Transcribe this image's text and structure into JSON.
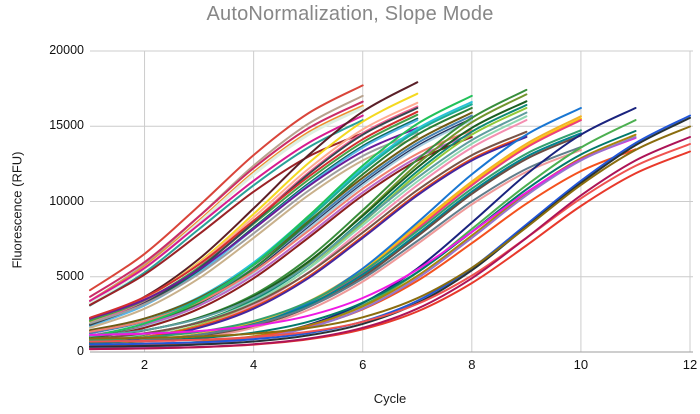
{
  "chart": {
    "background": "#ffffff",
    "title_color": "#878787",
    "gridline_color": "#cccccc",
    "baseline_color": "#9e9e9e"
  },
  "chart_data": {
    "type": "line",
    "title": "AutoNormalization, Slope Mode",
    "xlabel": "Cycle",
    "ylabel": "Fluorescence (RFU)",
    "xlim": [
      1,
      12
    ],
    "ylim": [
      0,
      20000
    ],
    "x_ticks": [
      2,
      4,
      6,
      8,
      10,
      12
    ],
    "y_ticks": [
      0,
      5000,
      10000,
      15000,
      20000
    ],
    "grid": true,
    "legend": false,
    "note": "qPCR-style amplification curves, no legend; every series starts at cycle 1; x values are integer cycles 1..N (N = array length); curves end in clusters at cycles 6-12",
    "series": [
      {
        "color": "#d9453a",
        "y": [
          4103,
          6516,
          9718,
          13084,
          15855,
          17714
        ]
      },
      {
        "color": "#b8a28e",
        "y": [
          3403,
          5816,
          9018,
          12384,
          15155,
          17014
        ]
      },
      {
        "color": "#cb2b66",
        "y": [
          3668,
          5966,
          9016,
          12221,
          14860,
          16631
        ]
      },
      {
        "color": "#ef8e2e",
        "y": [
          3398,
          5696,
          8746,
          11951,
          14590,
          16361
        ]
      },
      {
        "color": "#ddf0e2",
        "width": 3,
        "y": [
          3248,
          5546,
          8596,
          11801,
          14440,
          16211
        ]
      },
      {
        "color": "#d81b8f",
        "y": [
          3393,
          5576,
          8474,
          11376,
          13883,
          15708
        ]
      },
      {
        "color": "#2aa198",
        "y": [
          3093,
          5276,
          8174,
          11076,
          13583,
          15408
        ]
      },
      {
        "color": "#9b2226",
        "y": [
          3126,
          5148,
          7832,
          10653,
          12975,
          14534
        ]
      },
      {
        "color": "#5a1f27",
        "y": [
          2068,
          3658,
          6186,
          9541,
          13066,
          15969,
          17917
        ]
      },
      {
        "color": "#f4d920",
        "y": [
          2036,
          3553,
          5966,
          9168,
          12534,
          15305,
          17164
        ]
      },
      {
        "color": "#ffab91",
        "y": [
          2153,
          3598,
          5896,
          8946,
          12151,
          14790,
          16561
        ]
      },
      {
        "color": "#f06292",
        "y": [
          1903,
          3348,
          5646,
          8696,
          11901,
          14540,
          16311
        ]
      },
      {
        "color": "#43a047",
        "y": [
          2070,
          3443,
          5626,
          8524,
          11426,
          13933,
          15758
        ]
      },
      {
        "color": "#0b6a5d",
        "y": [
          1820,
          3193,
          5376,
          8274,
          11176,
          13683,
          15508
        ]
      },
      {
        "color": "#58b6e8",
        "y": [
          1720,
          3093,
          5276,
          8174,
          11076,
          13583,
          15408
        ]
      },
      {
        "color": "#37474f",
        "y": [
          1803,
          3248,
          5546,
          8596,
          11801,
          14440,
          16211
        ]
      },
      {
        "color": "#6a1b9a",
        "y": [
          2205,
          3476,
          5498,
          8182,
          11003,
          13325,
          14884
        ]
      },
      {
        "color": "#9e9e9e",
        "y": [
          1905,
          3176,
          5198,
          7882,
          10703,
          13025,
          14584
        ]
      },
      {
        "color": "#d32f2f",
        "y": [
          2270,
          3643,
          5826,
          8724,
          11626,
          14133,
          15958
        ]
      },
      {
        "color": "#c9b18c",
        "y": [
          1605,
          2876,
          4898,
          7582,
          10403,
          12725,
          14284
        ]
      },
      {
        "color": "#29c2d6",
        "y": [
          1393,
          2203,
          3648,
          5946,
          8996,
          12201,
          14840,
          16611
        ]
      },
      {
        "color": "#6e5a14",
        "y": [
          1451,
          2220,
          3593,
          5776,
          8674,
          11576,
          14083,
          15908
        ]
      },
      {
        "color": "#19ad93",
        "y": [
          1243,
          2053,
          3498,
          5796,
          8846,
          12051,
          14690,
          16461
        ]
      },
      {
        "color": "#4682b4",
        "y": [
          1251,
          2020,
          3393,
          5576,
          8474,
          11376,
          13883,
          15708
        ]
      },
      {
        "color": "#23345e",
        "y": [
          1051,
          1820,
          3193,
          5376,
          8274,
          11176,
          13683,
          15508
        ]
      },
      {
        "color": "#a9cfe0",
        "y": [
          951,
          1720,
          3093,
          5276,
          8174,
          11076,
          13583,
          15408
        ]
      },
      {
        "color": "#2e7d32",
        "y": [
          993,
          1803,
          3248,
          5546,
          8596,
          11801,
          14440,
          16211
        ]
      },
      {
        "color": "#f08070",
        "y": [
          1342,
          2055,
          3326,
          5348,
          8032,
          10853,
          13175,
          14734
        ]
      },
      {
        "color": "#ba68c8",
        "y": [
          1092,
          1805,
          3076,
          5098,
          7782,
          10603,
          12925,
          14484
        ]
      },
      {
        "color": "#8d1d1d",
        "y": [
          892,
          1605,
          2876,
          4898,
          7582,
          10403,
          12725,
          14284
        ]
      },
      {
        "color": "#21c15a",
        "y": [
          1035,
          1886,
          3403,
          5816,
          9018,
          12384,
          15155,
          17014
        ]
      },
      {
        "color": "#388e3c",
        "y": [
          991,
          1435,
          2286,
          3803,
          6216,
          9418,
          12784,
          15555,
          17414
        ]
      },
      {
        "color": "#71952c",
        "y": [
          691,
          1135,
          1986,
          3503,
          5916,
          9118,
          12484,
          15255,
          17114
        ]
      },
      {
        "color": "#1b5e20",
        "y": [
          1020,
          1443,
          2253,
          3698,
          5996,
          9046,
          12251,
          14890,
          16661
        ]
      },
      {
        "color": "#0d8a74",
        "y": [
          770,
          1193,
          2003,
          3448,
          5746,
          8796,
          12001,
          14640,
          16411
        ]
      },
      {
        "color": "#93c838",
        "y": [
          570,
          993,
          1803,
          3248,
          5546,
          8596,
          11801,
          14440,
          16211
        ]
      },
      {
        "color": "#8fd8b2",
        "y": [
          799,
          1201,
          1970,
          3343,
          5526,
          8424,
          11326,
          13833,
          15658
        ]
      },
      {
        "color": "#f48fb1",
        "y": [
          549,
          951,
          1720,
          3093,
          5276,
          8174,
          11076,
          13583,
          15408
        ]
      },
      {
        "color": "#795548",
        "y": [
          870,
          1242,
          1955,
          3226,
          5248,
          7932,
          10753,
          13075,
          14634
        ]
      },
      {
        "color": "#e64a19",
        "y": [
          620,
          992,
          1705,
          2976,
          4998,
          7682,
          10503,
          12825,
          14384
        ]
      },
      {
        "color": "#4527a0",
        "y": [
          520,
          892,
          1605,
          2876,
          4898,
          7582,
          10403,
          12725,
          14284
        ]
      },
      {
        "color": "#5f9ea0",
        "y": [
          1049,
          1451,
          2220,
          3593,
          5776,
          8674,
          11576,
          14083,
          15908
        ]
      },
      {
        "color": "#f0b428",
        "y": [
          597,
          799,
          1201,
          1970,
          3343,
          5526,
          8424,
          11326,
          13833,
          15658
        ]
      },
      {
        "color": "#ffc107",
        "y": [
          447,
          649,
          1051,
          1820,
          3193,
          5376,
          8274,
          11176,
          13683,
          15508
        ]
      },
      {
        "color": "#ec407a",
        "y": [
          347,
          549,
          951,
          1720,
          3093,
          5276,
          8174,
          11076,
          13583,
          15408
        ]
      },
      {
        "color": "#1976d2",
        "y": [
          357,
          570,
          993,
          1803,
          3248,
          5546,
          8596,
          11801,
          14440,
          16211
        ]
      },
      {
        "color": "#33a06f",
        "y": [
          782,
          970,
          1342,
          2055,
          3326,
          5348,
          8032,
          10853,
          13175,
          14734
        ]
      },
      {
        "color": "#00838f",
        "y": [
          582,
          770,
          1142,
          1855,
          3126,
          5148,
          7832,
          10653,
          12975,
          14534
        ]
      },
      {
        "color": "#6d4c41",
        "y": [
          432,
          620,
          992,
          1705,
          2976,
          4998,
          7682,
          10503,
          12825,
          14384
        ]
      },
      {
        "color": "#607d8b",
        "y": [
          620,
          794,
          1141,
          1805,
          2990,
          4875,
          7376,
          10004,
          12168,
          13620
        ]
      },
      {
        "color": "#ef9a9a",
        "y": [
          420,
          594,
          941,
          1605,
          2790,
          4675,
          7176,
          9804,
          11968,
          13420
        ]
      },
      {
        "color": "#1a237e",
        "y": [
          251,
          357,
          570,
          993,
          1803,
          3248,
          5546,
          8596,
          11801,
          14440,
          16211
        ]
      },
      {
        "color": "#4caf50",
        "y": [
          246,
          347,
          549,
          951,
          1720,
          3093,
          5276,
          8174,
          11076,
          13583,
          15408
        ]
      },
      {
        "color": "#00796b",
        "y": [
          639,
          732,
          920,
          1292,
          2005,
          3276,
          5298,
          7982,
          10803,
          13125,
          14684
        ]
      },
      {
        "color": "#a8860b",
        "y": [
          389,
          482,
          670,
          1042,
          1755,
          3026,
          5048,
          7732,
          10553,
          12875,
          14434
        ]
      },
      {
        "color": "#ef18e4",
        "y": [
          1133,
          1220,
          1394,
          1741,
          2405,
          3590,
          5475,
          7976,
          10604,
          12768,
          14220
        ]
      },
      {
        "color": "#f4511e",
        "y": [
          383,
          470,
          644,
          991,
          1655,
          2840,
          4725,
          7226,
          9854,
          12018,
          13470
        ]
      },
      {
        "color": "#9575cd",
        "y": [
          239,
          332,
          520,
          892,
          1605,
          2876,
          4898,
          7582,
          10403,
          12725,
          14284
        ]
      },
      {
        "color": "#2156d9",
        "y": [
          498,
          546,
          647,
          849,
          1251,
          2020,
          3393,
          5576,
          8474,
          11376,
          13883,
          15708
        ]
      },
      {
        "color": "#263238",
        "y": [
          348,
          396,
          497,
          699,
          1101,
          1870,
          3243,
          5426,
          8324,
          11226,
          13733,
          15558
        ]
      },
      {
        "color": "#8a6d0e",
        "y": [
          894,
          939,
          1032,
          1220,
          1592,
          2305,
          3576,
          5598,
          8282,
          11103,
          13425,
          14984
        ]
      },
      {
        "color": "#e8392b",
        "y": [
          191,
          233,
          320,
          494,
          841,
          1505,
          2690,
          4575,
          7076,
          9704,
          11868,
          13320
        ]
      },
      {
        "color": "#ef5350",
        "y": [
          691,
          733,
          820,
          994,
          1341,
          2005,
          3190,
          5075,
          7576,
          10204,
          12368,
          13820
        ]
      },
      {
        "color": "#ad1457",
        "y": [
          194,
          239,
          332,
          520,
          892,
          1605,
          2876,
          4898,
          7582,
          10403,
          12725,
          14284
        ]
      }
    ]
  }
}
